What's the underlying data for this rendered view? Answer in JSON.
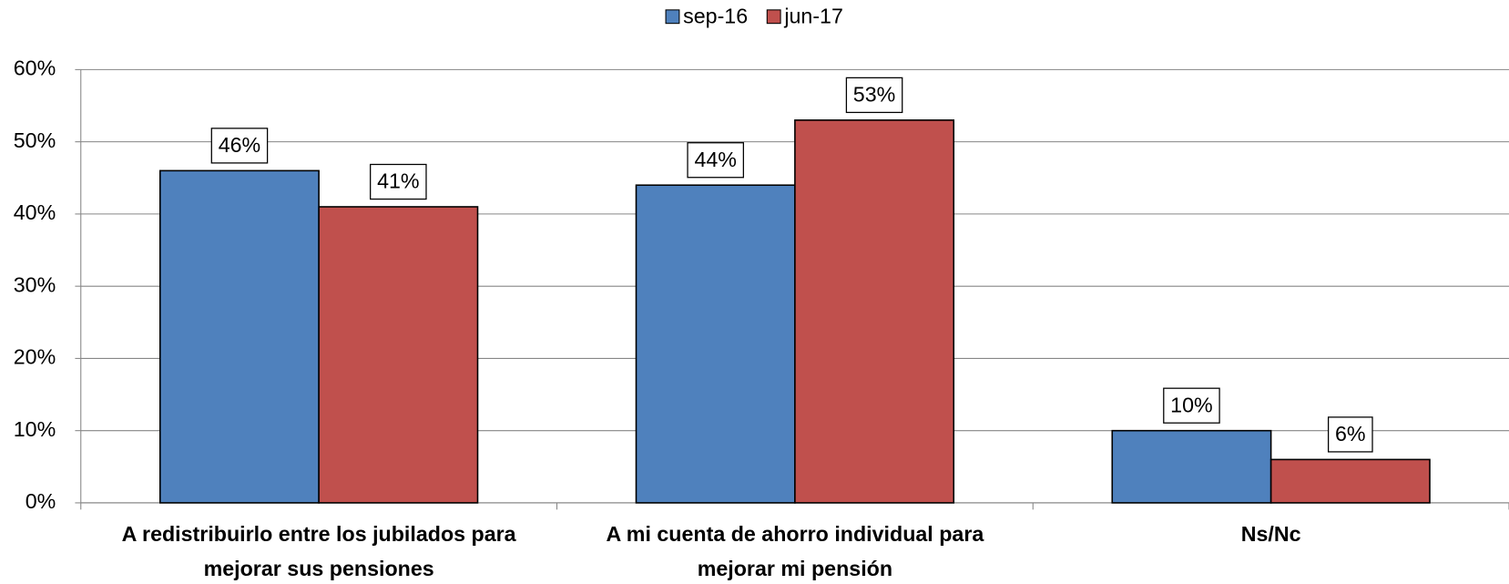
{
  "chart_data": {
    "type": "bar",
    "categories": [
      [
        "A redistribuirlo entre los  jubilados para",
        "mejorar sus pensiones"
      ],
      [
        "A mi cuenta de ahorro individual para",
        "mejorar mi pensión"
      ],
      [
        "Ns/Nc"
      ]
    ],
    "series": [
      {
        "name": "sep-16",
        "color": "#4f81bd",
        "values": [
          46,
          44,
          10
        ],
        "value_labels": [
          "46%",
          "44%",
          "10%"
        ]
      },
      {
        "name": "jun-17",
        "color": "#c0504d",
        "values": [
          41,
          53,
          6
        ],
        "value_labels": [
          "41%",
          "53%",
          "6%"
        ]
      }
    ],
    "ylim": [
      0,
      60
    ],
    "yticks": [
      {
        "value": 0,
        "label": "0%"
      },
      {
        "value": 10,
        "label": "10%"
      },
      {
        "value": 20,
        "label": "20%"
      },
      {
        "value": 30,
        "label": "30%"
      },
      {
        "value": 40,
        "label": "40%"
      },
      {
        "value": 50,
        "label": "50%"
      },
      {
        "value": 60,
        "label": "60%"
      }
    ],
    "grid": true,
    "legend": "top"
  }
}
